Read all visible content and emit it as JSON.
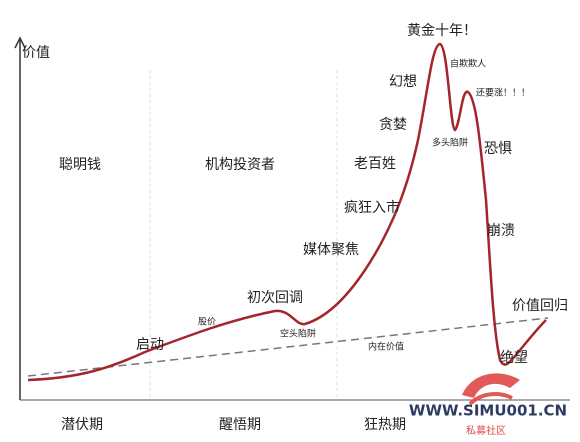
{
  "axis_label": "价值",
  "regions": [
    "聪明钱",
    "机构投资者"
  ],
  "annotations": [
    "启动",
    "股价",
    "初次回调",
    "空头陷阱",
    "媒体聚焦",
    "疯狂入市",
    "老百姓",
    "贪婪",
    "幻想",
    "黄金十年！",
    "自欺欺人",
    "还要涨！！！",
    "多头陷阱",
    "恐惧",
    "崩溃",
    "价值回归",
    "内在价值",
    "绝望"
  ],
  "phases": [
    "潜伏期",
    "醒悟期",
    "狂热期"
  ],
  "watermark": {
    "url": "WWW.SIMU001.CN",
    "name": "私募社区"
  }
}
